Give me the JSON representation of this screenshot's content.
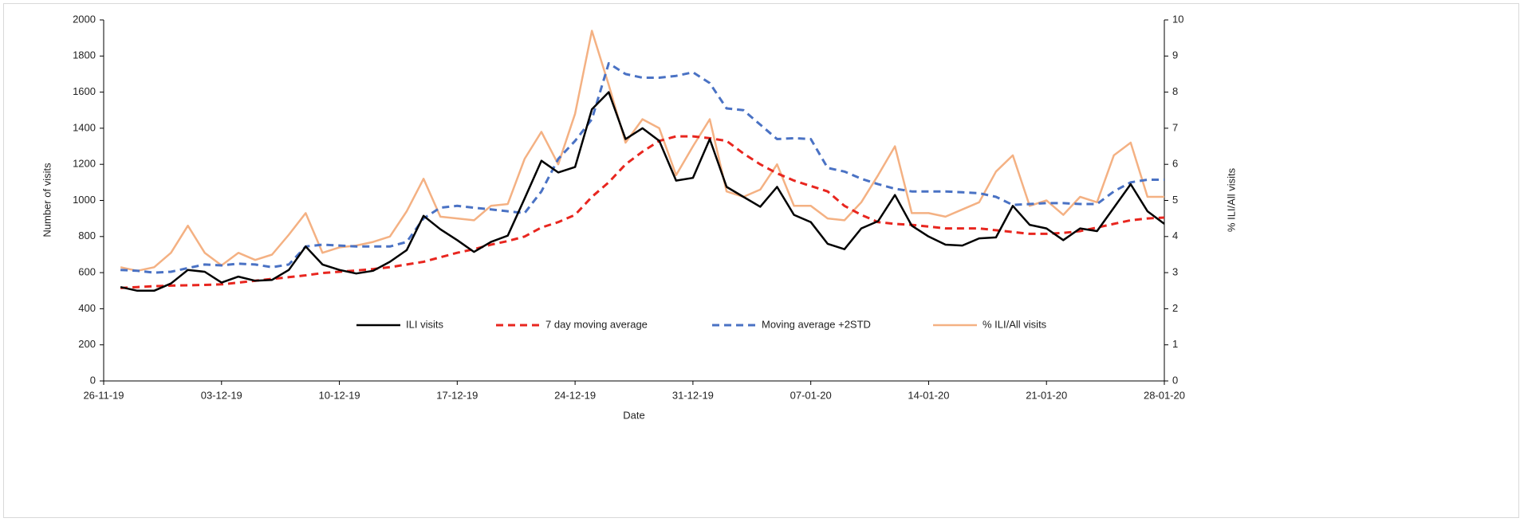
{
  "chart_data": {
    "type": "line",
    "x": [
      "2019-11-27",
      "2019-11-28",
      "2019-11-29",
      "2019-11-30",
      "2019-12-01",
      "2019-12-02",
      "2019-12-03",
      "2019-12-04",
      "2019-12-05",
      "2019-12-06",
      "2019-12-07",
      "2019-12-08",
      "2019-12-09",
      "2019-12-10",
      "2019-12-11",
      "2019-12-12",
      "2019-12-13",
      "2019-12-14",
      "2019-12-15",
      "2019-12-16",
      "2019-12-17",
      "2019-12-18",
      "2019-12-19",
      "2019-12-20",
      "2019-12-21",
      "2019-12-22",
      "2019-12-23",
      "2019-12-24",
      "2019-12-25",
      "2019-12-26",
      "2019-12-27",
      "2019-12-28",
      "2019-12-29",
      "2019-12-30",
      "2019-12-31",
      "2020-01-01",
      "2020-01-02",
      "2020-01-03",
      "2020-01-04",
      "2020-01-05",
      "2020-01-06",
      "2020-01-07",
      "2020-01-08",
      "2020-01-09",
      "2020-01-10",
      "2020-01-11",
      "2020-01-12",
      "2020-01-13",
      "2020-01-14",
      "2020-01-15",
      "2020-01-16",
      "2020-01-17",
      "2020-01-18",
      "2020-01-19",
      "2020-01-20",
      "2020-01-21",
      "2020-01-22",
      "2020-01-23",
      "2020-01-24",
      "2020-01-25",
      "2020-01-26",
      "2020-01-27",
      "2020-01-28"
    ],
    "series": [
      {
        "name": "ILI visits",
        "color": "#000000",
        "dash": false,
        "values": [
          520,
          500,
          500,
          540,
          615,
          605,
          545,
          578,
          555,
          560,
          615,
          745,
          645,
          615,
          595,
          610,
          660,
          725,
          915,
          840,
          780,
          715,
          770,
          805,
          1010,
          1220,
          1155,
          1185,
          1505,
          1600,
          1340,
          1400,
          1330,
          1110,
          1125,
          1340,
          1075,
          1020,
          965,
          1075,
          920,
          880,
          760,
          730,
          845,
          885,
          1030,
          860,
          800,
          755,
          750,
          790,
          795,
          970,
          865,
          845,
          780,
          845,
          830,
          960,
          1090,
          940,
          870
        ]
      },
      {
        "name": "7 day moving average",
        "color": "#e8261f",
        "dash": true,
        "values": [
          515,
          520,
          525,
          528,
          530,
          532,
          535,
          545,
          555,
          565,
          575,
          585,
          598,
          605,
          612,
          620,
          630,
          645,
          660,
          685,
          710,
          730,
          755,
          775,
          800,
          850,
          880,
          920,
          1020,
          1100,
          1200,
          1270,
          1330,
          1355,
          1355,
          1345,
          1330,
          1260,
          1200,
          1150,
          1110,
          1080,
          1050,
          970,
          920,
          880,
          870,
          865,
          855,
          845,
          845,
          845,
          835,
          825,
          815,
          815,
          820,
          830,
          850,
          870,
          890,
          900,
          905
        ]
      },
      {
        "name": "Moving average +2STD",
        "color": "#4a72c4",
        "dash": true,
        "values": [
          615,
          610,
          600,
          605,
          625,
          645,
          640,
          650,
          645,
          630,
          645,
          745,
          755,
          750,
          745,
          745,
          745,
          770,
          900,
          960,
          970,
          960,
          950,
          940,
          930,
          1050,
          1230,
          1330,
          1450,
          1760,
          1700,
          1680,
          1680,
          1690,
          1710,
          1650,
          1510,
          1500,
          1420,
          1340,
          1345,
          1340,
          1180,
          1160,
          1120,
          1090,
          1065,
          1050,
          1050,
          1050,
          1045,
          1040,
          1020,
          975,
          980,
          985,
          985,
          980,
          980,
          1050,
          1100,
          1115,
          1115
        ]
      },
      {
        "name": "% ILI/All visits",
        "color": "#f4b183",
        "dash": false,
        "axis": "y2",
        "values": [
          3.15,
          3.05,
          3.15,
          3.55,
          4.3,
          3.55,
          3.2,
          3.55,
          3.35,
          3.5,
          4.05,
          4.65,
          3.55,
          3.7,
          3.75,
          3.85,
          4.0,
          4.7,
          5.6,
          4.55,
          4.5,
          4.45,
          4.85,
          4.9,
          6.15,
          6.9,
          6.0,
          7.4,
          9.7,
          8.2,
          6.6,
          7.25,
          7.0,
          5.7,
          6.5,
          7.25,
          5.25,
          5.1,
          5.3,
          6.0,
          4.85,
          4.85,
          4.5,
          4.45,
          4.95,
          5.7,
          6.5,
          4.65,
          4.65,
          4.55,
          4.75,
          4.95,
          5.8,
          6.25,
          4.85,
          5.0,
          4.6,
          5.1,
          4.95,
          6.25,
          6.6,
          5.1,
          5.1
        ]
      }
    ],
    "x_label": "Date",
    "y_label": "Number of visits",
    "y2_label": "% ILI/All visits",
    "xlim": [
      "2019-11-26",
      "2020-01-28"
    ],
    "xticks": [
      {
        "value": "2019-11-26",
        "label": "26-11-19"
      },
      {
        "value": "2019-12-03",
        "label": "03-12-19"
      },
      {
        "value": "2019-12-10",
        "label": "10-12-19"
      },
      {
        "value": "2019-12-17",
        "label": "17-12-19"
      },
      {
        "value": "2019-12-24",
        "label": "24-12-19"
      },
      {
        "value": "2019-12-31",
        "label": "31-12-19"
      },
      {
        "value": "2020-01-07",
        "label": "07-01-20"
      },
      {
        "value": "2020-01-14",
        "label": "14-01-20"
      },
      {
        "value": "2020-01-21",
        "label": "21-01-20"
      },
      {
        "value": "2020-01-28",
        "label": "28-01-20"
      }
    ],
    "ylim": [
      0,
      2000
    ],
    "yticks": [
      0,
      200,
      400,
      600,
      800,
      1000,
      1200,
      1400,
      1600,
      1800,
      2000
    ],
    "y2lim": [
      0,
      10
    ],
    "y2ticks": [
      0,
      1,
      2,
      3,
      4,
      5,
      6,
      7,
      8,
      9,
      10
    ],
    "legend": "bottom",
    "grid": false
  }
}
